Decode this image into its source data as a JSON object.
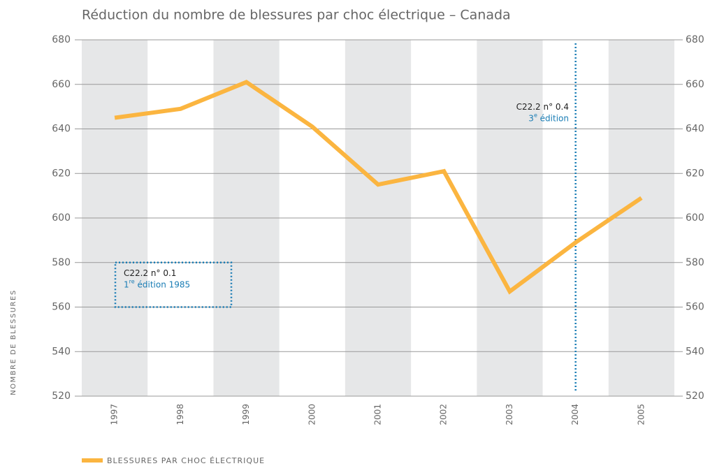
{
  "chart_data": {
    "type": "line",
    "title": "Réduction du nombre de blessures par choc électrique – Canada",
    "y_label": "NOMBRE DE BLESSURES",
    "categories": [
      "1997",
      "1998",
      "1999",
      "2000",
      "2001",
      "2002",
      "2003",
      "2004",
      "2005"
    ],
    "series": [
      {
        "name": "BLESSURES PAR CHOC ÉLECTRIQUE",
        "color": "#fbb540",
        "values": [
          645,
          649,
          661,
          641,
          615,
          621,
          567,
          589,
          609
        ]
      }
    ],
    "ylim": [
      520,
      680
    ],
    "yticks": [
      520,
      540,
      560,
      580,
      600,
      620,
      640,
      660,
      680
    ],
    "y2lim": [
      520,
      680
    ],
    "y2ticks": [
      520,
      540,
      560,
      580,
      600,
      620,
      640,
      660,
      680
    ],
    "grid": true,
    "band_color": "#e6e7e8",
    "annotation_color": "#1a7db5",
    "annotations": [
      {
        "code": "C22.2 n° 0.1",
        "edition": [
          "1",
          "re",
          " édition 1985"
        ]
      },
      {
        "code": "C22.2 n° 0.4",
        "edition": [
          "3",
          "e",
          " édition"
        ]
      }
    ]
  }
}
